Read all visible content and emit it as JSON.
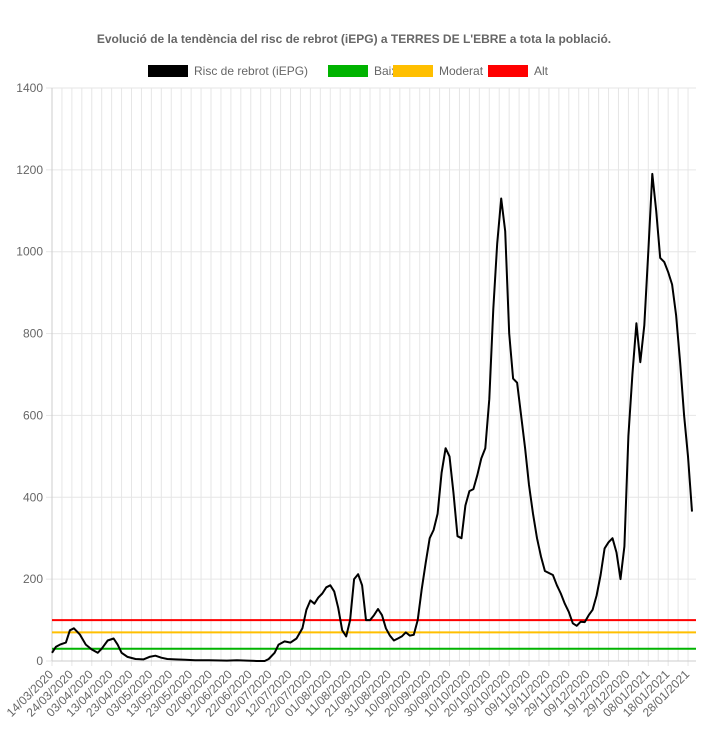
{
  "chart_data": {
    "type": "line",
    "title": "Evolució de la tendència del risc de rebrot (iEPG) a TERRES DE L'EBRE a tota la població.",
    "xlabel": "",
    "ylabel": "",
    "ylim": [
      0,
      1400
    ],
    "yticks": [
      0,
      200,
      400,
      600,
      800,
      1000,
      1200,
      1400
    ],
    "x_range": [
      "14/03/2020",
      "01/02/2021"
    ],
    "xticks": [
      "14/03/2020",
      "24/03/2020",
      "03/04/2020",
      "13/04/2020",
      "23/04/2020",
      "03/05/2020",
      "13/05/2020",
      "23/05/2020",
      "02/06/2020",
      "12/06/2020",
      "22/06/2020",
      "02/07/2020",
      "12/07/2020",
      "22/07/2020",
      "01/08/2020",
      "11/08/2020",
      "21/08/2020",
      "31/08/2020",
      "10/09/2020",
      "20/09/2020",
      "30/09/2020",
      "10/10/2020",
      "20/10/2020",
      "30/10/2020",
      "09/11/2020",
      "19/11/2020",
      "29/11/2020",
      "09/12/2020",
      "19/12/2020",
      "29/12/2020",
      "08/01/2021",
      "18/01/2021",
      "28/01/2021"
    ],
    "grid": true,
    "legend_position": "top",
    "legend": [
      {
        "label": "Risc de rebrot (iEPG)",
        "color": "#000000"
      },
      {
        "label": "Baix",
        "color": "#00b300"
      },
      {
        "label": "Moderat",
        "color": "#ffbf00"
      },
      {
        "label": "Alt",
        "color": "#ff0000"
      }
    ],
    "thresholds": [
      {
        "name": "Baix",
        "value": 30,
        "color": "#00b300"
      },
      {
        "name": "Moderat",
        "value": 70,
        "color": "#ffbf00"
      },
      {
        "name": "Alt",
        "value": 100,
        "color": "#ff0000"
      }
    ],
    "series": [
      {
        "name": "Risc de rebrot (iEPG)",
        "color": "#000000",
        "points": [
          [
            "14/03/2020",
            20
          ],
          [
            "16/03/2020",
            35
          ],
          [
            "18/03/2020",
            40
          ],
          [
            "21/03/2020",
            45
          ],
          [
            "23/03/2020",
            75
          ],
          [
            "25/03/2020",
            80
          ],
          [
            "28/03/2020",
            65
          ],
          [
            "31/03/2020",
            40
          ],
          [
            "03/04/2020",
            28
          ],
          [
            "06/04/2020",
            20
          ],
          [
            "08/04/2020",
            30
          ],
          [
            "11/04/2020",
            50
          ],
          [
            "14/04/2020",
            55
          ],
          [
            "16/04/2020",
            40
          ],
          [
            "18/04/2020",
            20
          ],
          [
            "21/04/2020",
            10
          ],
          [
            "25/04/2020",
            5
          ],
          [
            "29/04/2020",
            4
          ],
          [
            "02/05/2020",
            10
          ],
          [
            "05/05/2020",
            13
          ],
          [
            "08/05/2020",
            8
          ],
          [
            "11/05/2020",
            5
          ],
          [
            "15/05/2020",
            4
          ],
          [
            "20/05/2020",
            3
          ],
          [
            "25/05/2020",
            2
          ],
          [
            "01/06/2020",
            2
          ],
          [
            "10/06/2020",
            1
          ],
          [
            "15/06/2020",
            2
          ],
          [
            "20/06/2020",
            1
          ],
          [
            "25/06/2020",
            0
          ],
          [
            "29/06/2020",
            0
          ],
          [
            "01/07/2020",
            5
          ],
          [
            "04/07/2020",
            20
          ],
          [
            "06/07/2020",
            40
          ],
          [
            "09/07/2020",
            48
          ],
          [
            "12/07/2020",
            45
          ],
          [
            "15/07/2020",
            55
          ],
          [
            "18/07/2020",
            80
          ],
          [
            "20/07/2020",
            125
          ],
          [
            "22/07/2020",
            148
          ],
          [
            "24/07/2020",
            140
          ],
          [
            "26/07/2020",
            155
          ],
          [
            "28/07/2020",
            165
          ],
          [
            "30/07/2020",
            180
          ],
          [
            "01/08/2020",
            185
          ],
          [
            "03/08/2020",
            170
          ],
          [
            "05/08/2020",
            130
          ],
          [
            "07/08/2020",
            75
          ],
          [
            "09/08/2020",
            60
          ],
          [
            "11/08/2020",
            100
          ],
          [
            "13/08/2020",
            200
          ],
          [
            "15/08/2020",
            212
          ],
          [
            "17/08/2020",
            185
          ],
          [
            "19/08/2020",
            100
          ],
          [
            "21/08/2020",
            100
          ],
          [
            "23/08/2020",
            112
          ],
          [
            "25/08/2020",
            127
          ],
          [
            "27/08/2020",
            112
          ],
          [
            "29/08/2020",
            80
          ],
          [
            "31/08/2020",
            62
          ],
          [
            "02/09/2020",
            50
          ],
          [
            "04/09/2020",
            55
          ],
          [
            "06/09/2020",
            60
          ],
          [
            "08/09/2020",
            70
          ],
          [
            "10/09/2020",
            62
          ],
          [
            "12/09/2020",
            64
          ],
          [
            "14/09/2020",
            100
          ],
          [
            "16/09/2020",
            175
          ],
          [
            "18/09/2020",
            240
          ],
          [
            "20/09/2020",
            300
          ],
          [
            "22/09/2020",
            320
          ],
          [
            "24/09/2020",
            360
          ],
          [
            "26/09/2020",
            460
          ],
          [
            "28/09/2020",
            520
          ],
          [
            "30/09/2020",
            500
          ],
          [
            "02/10/2020",
            410
          ],
          [
            "04/10/2020",
            305
          ],
          [
            "06/10/2020",
            300
          ],
          [
            "08/10/2020",
            380
          ],
          [
            "10/10/2020",
            415
          ],
          [
            "12/10/2020",
            420
          ],
          [
            "14/10/2020",
            455
          ],
          [
            "16/10/2020",
            495
          ],
          [
            "18/10/2020",
            520
          ],
          [
            "20/10/2020",
            640
          ],
          [
            "22/10/2020",
            860
          ],
          [
            "24/10/2020",
            1020
          ],
          [
            "26/10/2020",
            1130
          ],
          [
            "28/10/2020",
            1050
          ],
          [
            "30/10/2020",
            800
          ],
          [
            "01/11/2020",
            690
          ],
          [
            "03/11/2020",
            680
          ],
          [
            "05/11/2020",
            600
          ],
          [
            "07/11/2020",
            520
          ],
          [
            "09/11/2020",
            430
          ],
          [
            "11/11/2020",
            360
          ],
          [
            "13/11/2020",
            300
          ],
          [
            "15/11/2020",
            255
          ],
          [
            "17/11/2020",
            220
          ],
          [
            "19/11/2020",
            215
          ],
          [
            "21/11/2020",
            210
          ],
          [
            "23/11/2020",
            185
          ],
          [
            "25/11/2020",
            165
          ],
          [
            "27/11/2020",
            140
          ],
          [
            "29/11/2020",
            120
          ],
          [
            "01/12/2020",
            92
          ],
          [
            "03/12/2020",
            86
          ],
          [
            "05/12/2020",
            96
          ],
          [
            "07/12/2020",
            95
          ],
          [
            "09/12/2020",
            112
          ],
          [
            "11/12/2020",
            125
          ],
          [
            "13/12/2020",
            160
          ],
          [
            "15/12/2020",
            210
          ],
          [
            "17/12/2020",
            275
          ],
          [
            "19/12/2020",
            290
          ],
          [
            "21/12/2020",
            300
          ],
          [
            "23/12/2020",
            265
          ],
          [
            "25/12/2020",
            200
          ],
          [
            "27/12/2020",
            280
          ],
          [
            "29/12/2020",
            550
          ],
          [
            "31/12/2020",
            700
          ],
          [
            "02/01/2021",
            825
          ],
          [
            "04/01/2021",
            730
          ],
          [
            "06/01/2021",
            820
          ],
          [
            "08/01/2021",
            1000
          ],
          [
            "10/01/2021",
            1190
          ],
          [
            "12/01/2021",
            1100
          ],
          [
            "14/01/2021",
            985
          ],
          [
            "16/01/2021",
            975
          ],
          [
            "18/01/2021",
            950
          ],
          [
            "20/01/2021",
            920
          ],
          [
            "22/01/2021",
            845
          ],
          [
            "24/01/2021",
            730
          ],
          [
            "26/01/2021",
            600
          ],
          [
            "28/01/2021",
            500
          ],
          [
            "30/01/2021",
            365
          ]
        ]
      }
    ]
  }
}
